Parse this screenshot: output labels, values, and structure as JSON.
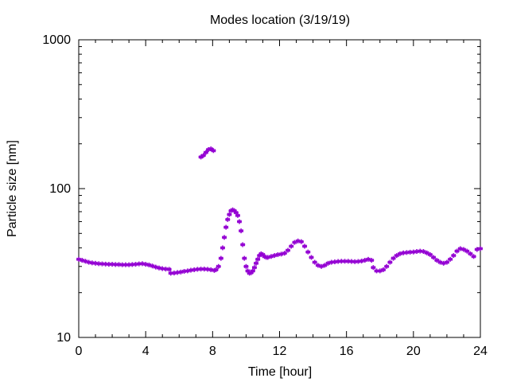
{
  "chart_data": {
    "type": "scatter",
    "title": "Modes location (3/19/19)",
    "xlabel": "Time [hour]",
    "ylabel": "Particle size [nm]",
    "xlim": [
      0,
      24
    ],
    "ylim": [
      10,
      1000
    ],
    "yscale": "log",
    "x_ticks": [
      0,
      4,
      8,
      12,
      16,
      20,
      24
    ],
    "x_tick_labels": [
      "0",
      "4",
      "8",
      "12",
      "16",
      "20",
      "24"
    ],
    "y_ticks": [
      10,
      100,
      1000
    ],
    "y_tick_labels": [
      "10",
      "100",
      "1000"
    ],
    "grid": false,
    "marker_color": "#9400D3",
    "series": [
      {
        "points": [
          [
            0.0,
            33.5
          ],
          [
            0.2,
            33.0
          ],
          [
            0.4,
            32.5
          ],
          [
            0.6,
            32.0
          ],
          [
            0.8,
            31.7
          ],
          [
            1.0,
            31.5
          ],
          [
            1.2,
            31.3
          ],
          [
            1.4,
            31.2
          ],
          [
            1.6,
            31.1
          ],
          [
            1.8,
            31.0
          ],
          [
            2.0,
            31.0
          ],
          [
            2.2,
            30.9
          ],
          [
            2.4,
            30.9
          ],
          [
            2.6,
            30.8
          ],
          [
            2.8,
            30.8
          ],
          [
            3.0,
            30.8
          ],
          [
            3.2,
            30.9
          ],
          [
            3.4,
            31.0
          ],
          [
            3.6,
            31.2
          ],
          [
            3.8,
            31.3
          ],
          [
            4.0,
            31.0
          ],
          [
            4.2,
            30.7
          ],
          [
            4.4,
            30.2
          ],
          [
            4.6,
            29.7
          ],
          [
            4.8,
            29.3
          ],
          [
            5.0,
            29.0
          ],
          [
            5.2,
            28.8
          ],
          [
            5.4,
            28.7
          ],
          [
            5.5,
            27.0
          ],
          [
            5.7,
            27.1
          ],
          [
            5.9,
            27.3
          ],
          [
            6.1,
            27.5
          ],
          [
            6.3,
            27.8
          ],
          [
            6.5,
            28.0
          ],
          [
            6.7,
            28.3
          ],
          [
            6.9,
            28.5
          ],
          [
            7.1,
            28.7
          ],
          [
            7.3,
            28.8
          ],
          [
            7.5,
            28.8
          ],
          [
            7.7,
            28.7
          ],
          [
            7.9,
            28.5
          ],
          [
            8.1,
            28.2
          ],
          [
            8.2,
            28.5
          ],
          [
            8.35,
            30
          ],
          [
            8.5,
            34
          ],
          [
            8.6,
            40
          ],
          [
            8.7,
            47
          ],
          [
            8.8,
            55
          ],
          [
            8.9,
            62
          ],
          [
            9.0,
            67
          ],
          [
            9.1,
            71
          ],
          [
            9.2,
            72
          ],
          [
            9.3,
            71
          ],
          [
            9.4,
            69
          ],
          [
            9.5,
            66
          ],
          [
            9.6,
            60
          ],
          [
            9.7,
            52
          ],
          [
            9.8,
            42
          ],
          [
            9.9,
            34
          ],
          [
            10.0,
            30
          ],
          [
            10.1,
            28
          ],
          [
            10.2,
            27
          ],
          [
            10.3,
            27.2
          ],
          [
            10.4,
            28
          ],
          [
            10.5,
            29.5
          ],
          [
            10.6,
            31.5
          ],
          [
            10.7,
            33.5
          ],
          [
            10.8,
            35.5
          ],
          [
            10.9,
            36.5
          ],
          [
            11.0,
            36
          ],
          [
            11.1,
            35
          ],
          [
            11.2,
            34.5
          ],
          [
            11.3,
            34.5
          ],
          [
            11.5,
            35
          ],
          [
            11.7,
            35.5
          ],
          [
            11.9,
            36
          ],
          [
            12.1,
            36.3
          ],
          [
            12.3,
            36.8
          ],
          [
            12.5,
            38.5
          ],
          [
            12.7,
            41
          ],
          [
            12.9,
            43.5
          ],
          [
            13.1,
            44.5
          ],
          [
            13.3,
            44
          ],
          [
            13.5,
            41
          ],
          [
            13.7,
            37.5
          ],
          [
            13.9,
            34.5
          ],
          [
            14.1,
            32
          ],
          [
            14.3,
            30.5
          ],
          [
            14.5,
            30
          ],
          [
            14.7,
            30.5
          ],
          [
            14.9,
            31.5
          ],
          [
            15.1,
            32
          ],
          [
            15.3,
            32.2
          ],
          [
            15.5,
            32.4
          ],
          [
            15.7,
            32.5
          ],
          [
            15.9,
            32.5
          ],
          [
            16.1,
            32.5
          ],
          [
            16.3,
            32.4
          ],
          [
            16.5,
            32.3
          ],
          [
            16.7,
            32.4
          ],
          [
            16.9,
            32.6
          ],
          [
            17.1,
            33
          ],
          [
            17.3,
            33.5
          ],
          [
            17.5,
            33
          ],
          [
            17.6,
            29.5
          ],
          [
            17.8,
            28
          ],
          [
            18.0,
            28
          ],
          [
            18.2,
            28.5
          ],
          [
            18.4,
            30
          ],
          [
            18.6,
            32
          ],
          [
            18.8,
            34
          ],
          [
            19.0,
            35.5
          ],
          [
            19.2,
            36.5
          ],
          [
            19.4,
            37
          ],
          [
            19.6,
            37.2
          ],
          [
            19.8,
            37.4
          ],
          [
            20.0,
            37.5
          ],
          [
            20.2,
            37.8
          ],
          [
            20.4,
            38
          ],
          [
            20.6,
            37.8
          ],
          [
            20.8,
            37
          ],
          [
            21.0,
            36
          ],
          [
            21.2,
            34.5
          ],
          [
            21.4,
            33
          ],
          [
            21.6,
            32
          ],
          [
            21.8,
            31.5
          ],
          [
            22.0,
            32
          ],
          [
            22.2,
            33.5
          ],
          [
            22.4,
            35.5
          ],
          [
            22.6,
            38
          ],
          [
            22.8,
            39.5
          ],
          [
            23.0,
            39
          ],
          [
            23.2,
            38
          ],
          [
            23.4,
            36.5
          ],
          [
            23.6,
            35
          ],
          [
            23.8,
            39
          ],
          [
            24.0,
            39.5
          ],
          [
            7.3,
            163
          ],
          [
            7.45,
            167
          ],
          [
            7.6,
            175
          ],
          [
            7.75,
            183
          ],
          [
            7.9,
            185
          ],
          [
            8.05,
            180
          ]
        ]
      }
    ]
  }
}
